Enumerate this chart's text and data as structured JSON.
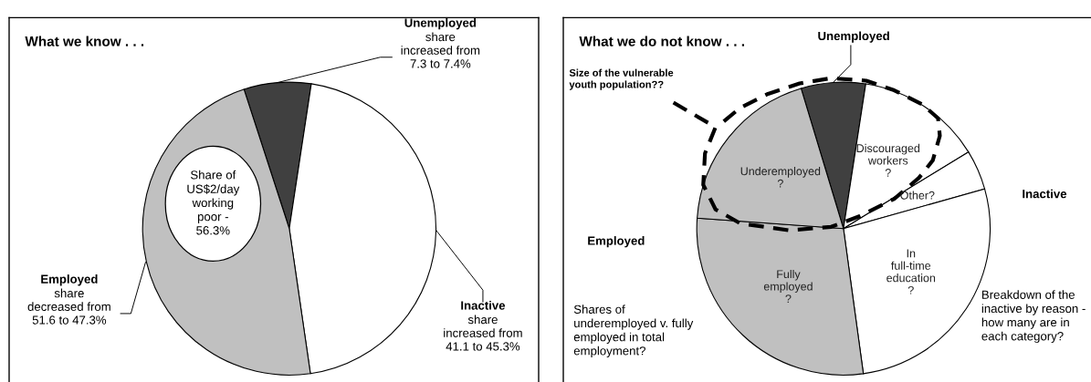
{
  "chart_data": [
    {
      "type": "pie",
      "title": "What we know . . .",
      "categories": [
        "Unemployed",
        "Inactive",
        "Employed"
      ],
      "values": [
        7.4,
        45.3,
        47.3
      ],
      "colors": [
        "#404040",
        "#ffffff",
        "#c0c0c0"
      ],
      "value_labels": [
        "share\nincreased from\n7.3 to 7.4%",
        "share\nincreased from\n41.1 to 45.3%",
        "share\ndecreased from\n51.6 to 47.3%"
      ],
      "annotations": [
        "Share of\nUS$2/day\nworking\npoor -\n56.3%"
      ]
    },
    {
      "type": "pie",
      "title": "What we do not know . . .",
      "categories": [
        "Unemployed",
        "Discouraged\nworkers\n?",
        "Other?",
        "In\nfull-time\neducation\n?",
        "Fully\nemployed\n?",
        "Underemployed\n?"
      ],
      "values": [
        7.1,
        13.8,
        4.4,
        27.2,
        28.3,
        19.2
      ],
      "colors": [
        "#404040",
        "#ffffff",
        "#ffffff",
        "#ffffff",
        "#c0c0c0",
        "#c0c0c0"
      ],
      "annotations": [
        "Size of the vulnerable\nyouth population??",
        "Employed",
        "Inactive",
        "Shares of\nunderemployed v. fully\nemployed in total\nemployment?",
        "Breakdown of the inactive by reason - how many are in each category?"
      ]
    }
  ]
}
